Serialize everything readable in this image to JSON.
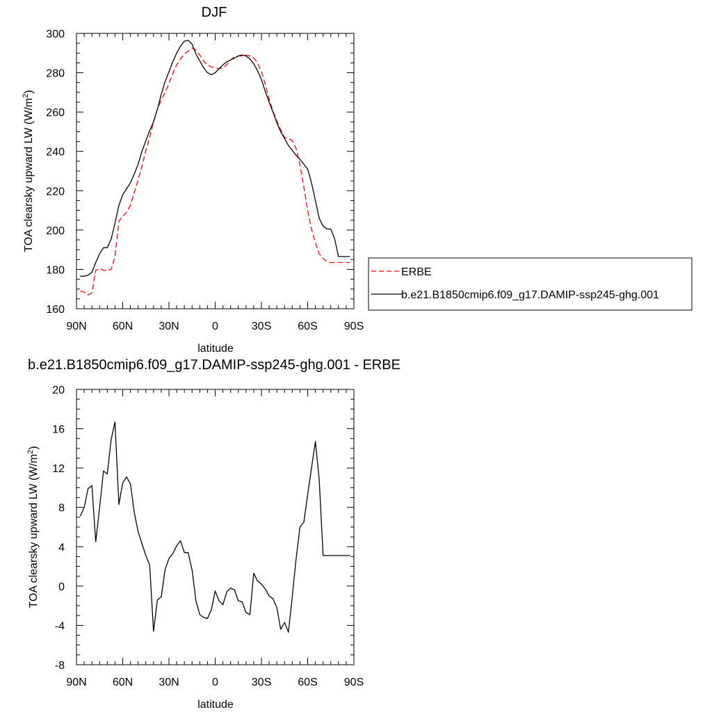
{
  "chart_data": [
    {
      "type": "line",
      "title": "DJF",
      "xlabel": "latitude",
      "ylabel": "TOA clearsky upward LW (W/m²)",
      "ylabel_main": "TOA clearsky upward LW (W/m",
      "ylabel_sup": "2",
      "ylabel_close": ")",
      "x_axis": "latitude, 90N to 90S",
      "xlim": [
        90,
        -90
      ],
      "ylim": [
        160,
        300
      ],
      "xticks": [
        90,
        60,
        30,
        0,
        -30,
        -60,
        -90
      ],
      "xtick_labels": [
        "90N",
        "60N",
        "30N",
        "0",
        "30S",
        "60S",
        "90S"
      ],
      "yticks": [
        160,
        180,
        200,
        220,
        240,
        260,
        280,
        300
      ],
      "ytick_labels": [
        "160",
        "180",
        "200",
        "220",
        "240",
        "260",
        "280",
        "300"
      ],
      "grid": false,
      "legend_position": "right",
      "series": [
        {
          "name": "ERBE",
          "color": "#ff0000",
          "dash": "dashed",
          "x": [
            87.5,
            85,
            82.5,
            80,
            77.5,
            75,
            72.5,
            70,
            67.5,
            65,
            62.5,
            60,
            57.5,
            55,
            52.5,
            50,
            47.5,
            45,
            42.5,
            40,
            37.5,
            35,
            32.5,
            30,
            27.5,
            25,
            22.5,
            20,
            17.5,
            15,
            12.5,
            10,
            7.5,
            5,
            2.5,
            0,
            -2.5,
            -5,
            -7.5,
            -10,
            -12.5,
            -15,
            -17.5,
            -20,
            -22.5,
            -25,
            -27.5,
            -30,
            -32.5,
            -35,
            -37.5,
            -40,
            -42.5,
            -45,
            -47.5,
            -50,
            -52.5,
            -55,
            -57.5,
            -60,
            -62.5,
            -65,
            -67.5,
            -70,
            -72.5,
            -75,
            -77.5,
            -80,
            -82.5,
            -85,
            -87.5
          ],
          "values": [
            169,
            168.5,
            167,
            168,
            179.5,
            180.5,
            179.5,
            179.5,
            180,
            186.5,
            204.5,
            207,
            209,
            212.5,
            219,
            225.5,
            232.5,
            240.5,
            247,
            255,
            261.5,
            266,
            270,
            274.5,
            279.5,
            284,
            287,
            289.5,
            291,
            292.5,
            291.5,
            289,
            286,
            284,
            283,
            282.5,
            282,
            282.5,
            284,
            286.5,
            288,
            288.5,
            288.5,
            289,
            288.5,
            287.5,
            285,
            280.5,
            274,
            266.5,
            260.5,
            255.5,
            251,
            247,
            246.5,
            245.5,
            241.5,
            233,
            222,
            210,
            200.5,
            193.5,
            188,
            185.5,
            184,
            183.5,
            183.5,
            183.5,
            183.5,
            183.5,
            183.5
          ]
        },
        {
          "name": "b.e21.B1850cmip6.f09_g17.DAMIP-ssp245-ghg.001",
          "color": "#000000",
          "dash": "solid",
          "x": [
            87.5,
            85,
            82.5,
            80,
            77.5,
            75,
            72.5,
            70,
            67.5,
            65,
            62.5,
            60,
            57.5,
            55,
            52.5,
            50,
            47.5,
            45,
            42.5,
            40,
            37.5,
            35,
            32.5,
            30,
            27.5,
            25,
            22.5,
            20,
            17.5,
            15,
            12.5,
            10,
            7.5,
            5,
            2.5,
            0,
            -2.5,
            -5,
            -7.5,
            -10,
            -12.5,
            -15,
            -17.5,
            -20,
            -22.5,
            -25,
            -27.5,
            -30,
            -32.5,
            -35,
            -37.5,
            -40,
            -42.5,
            -45,
            -47.5,
            -50,
            -52.5,
            -55,
            -57.5,
            -60,
            -62.5,
            -65,
            -67.5,
            -70,
            -72.5,
            -75,
            -77.5,
            -80,
            -82.5,
            -85,
            -87.5
          ],
          "values": [
            176.5,
            176.5,
            177,
            178.5,
            183.5,
            188,
            191,
            191,
            195.5,
            203.5,
            212.5,
            218,
            221,
            224,
            228.5,
            233.5,
            240,
            245.5,
            250.5,
            255,
            261.5,
            269,
            275.5,
            280.5,
            285.5,
            290,
            293.5,
            296,
            296.5,
            294.5,
            289.5,
            286,
            282.5,
            280,
            279,
            280,
            282,
            284,
            285.5,
            286.5,
            287.5,
            288.5,
            289,
            288.5,
            287,
            284.5,
            281,
            276.5,
            270.5,
            265,
            260,
            254.5,
            250,
            246.5,
            243,
            240.5,
            238,
            236,
            233.5,
            231,
            224,
            215,
            206,
            202,
            200.5,
            200.5,
            195.5,
            186.5,
            186.5,
            186.5,
            186.5
          ]
        }
      ]
    },
    {
      "type": "line",
      "title": "b.e21.B1850cmip6.f09_g17.DAMIP-ssp245-ghg.001 - ERBE",
      "xlabel": "latitude",
      "ylabel": "TOA clearsky upward LW (W/m²)",
      "ylabel_main": "TOA clearsky upward LW (W/m",
      "ylabel_sup": "2",
      "ylabel_close": ")",
      "xlim": [
        90,
        -90
      ],
      "ylim": [
        -8,
        20
      ],
      "xticks": [
        90,
        60,
        30,
        0,
        -30,
        -60,
        -90
      ],
      "xtick_labels": [
        "90N",
        "60N",
        "30N",
        "0",
        "30S",
        "60S",
        "90S"
      ],
      "yticks": [
        -8,
        -4,
        0,
        4,
        8,
        12,
        16,
        20
      ],
      "ytick_labels": [
        "-8",
        "-4",
        "0",
        "4",
        "8",
        "12",
        "16",
        "20"
      ],
      "grid": false,
      "series": [
        {
          "color": "#000000",
          "dash": "solid",
          "x": [
            87.5,
            85,
            82.5,
            80,
            77.5,
            75,
            72.5,
            70,
            67.5,
            65,
            62.5,
            60,
            57.5,
            55,
            52.5,
            50,
            47.5,
            45,
            42.5,
            40,
            37.5,
            35,
            32.5,
            30,
            27.5,
            25,
            22.5,
            20,
            17.5,
            15,
            12.5,
            10,
            7.5,
            5,
            2.5,
            0,
            -2.5,
            -5,
            -7.5,
            -10,
            -12.5,
            -15,
            -17.5,
            -20,
            -22.5,
            -25,
            -27.5,
            -30,
            -32.5,
            -35,
            -37.5,
            -40,
            -42.5,
            -45,
            -47.5,
            -50,
            -52.5,
            -55,
            -57.5,
            -60,
            -62.5,
            -65,
            -67.5,
            -70,
            -72.5,
            -75,
            -77.5,
            -80,
            -82.5,
            -85,
            -87.5
          ],
          "values": [
            7.1,
            8,
            9.9,
            10.2,
            4.5,
            8,
            11.7,
            11.4,
            14.9,
            16.7,
            8.3,
            10.5,
            11.1,
            10.4,
            7.5,
            5.5,
            4.3,
            3.1,
            2.1,
            -4.6,
            -1.4,
            -1.1,
            1.7,
            2.8,
            3.3,
            4.1,
            4.6,
            3.4,
            3.4,
            1.6,
            -1.5,
            -2.9,
            -3.2,
            -3.3,
            -2.4,
            -0.5,
            -1.5,
            -1.9,
            -0.6,
            -0.2,
            -0.4,
            -1.5,
            -1.6,
            -2.7,
            -2.9,
            1.3,
            0.5,
            0.2,
            -0.3,
            -1,
            -1.3,
            -2.2,
            -4.4,
            -3.7,
            -4.7,
            -1.1,
            2.8,
            6,
            6.5,
            9.3,
            12,
            14.7,
            10.8,
            3.1,
            3.1,
            3.1,
            3.1,
            3.1,
            3.1,
            3.1,
            3.1
          ]
        }
      ]
    }
  ]
}
